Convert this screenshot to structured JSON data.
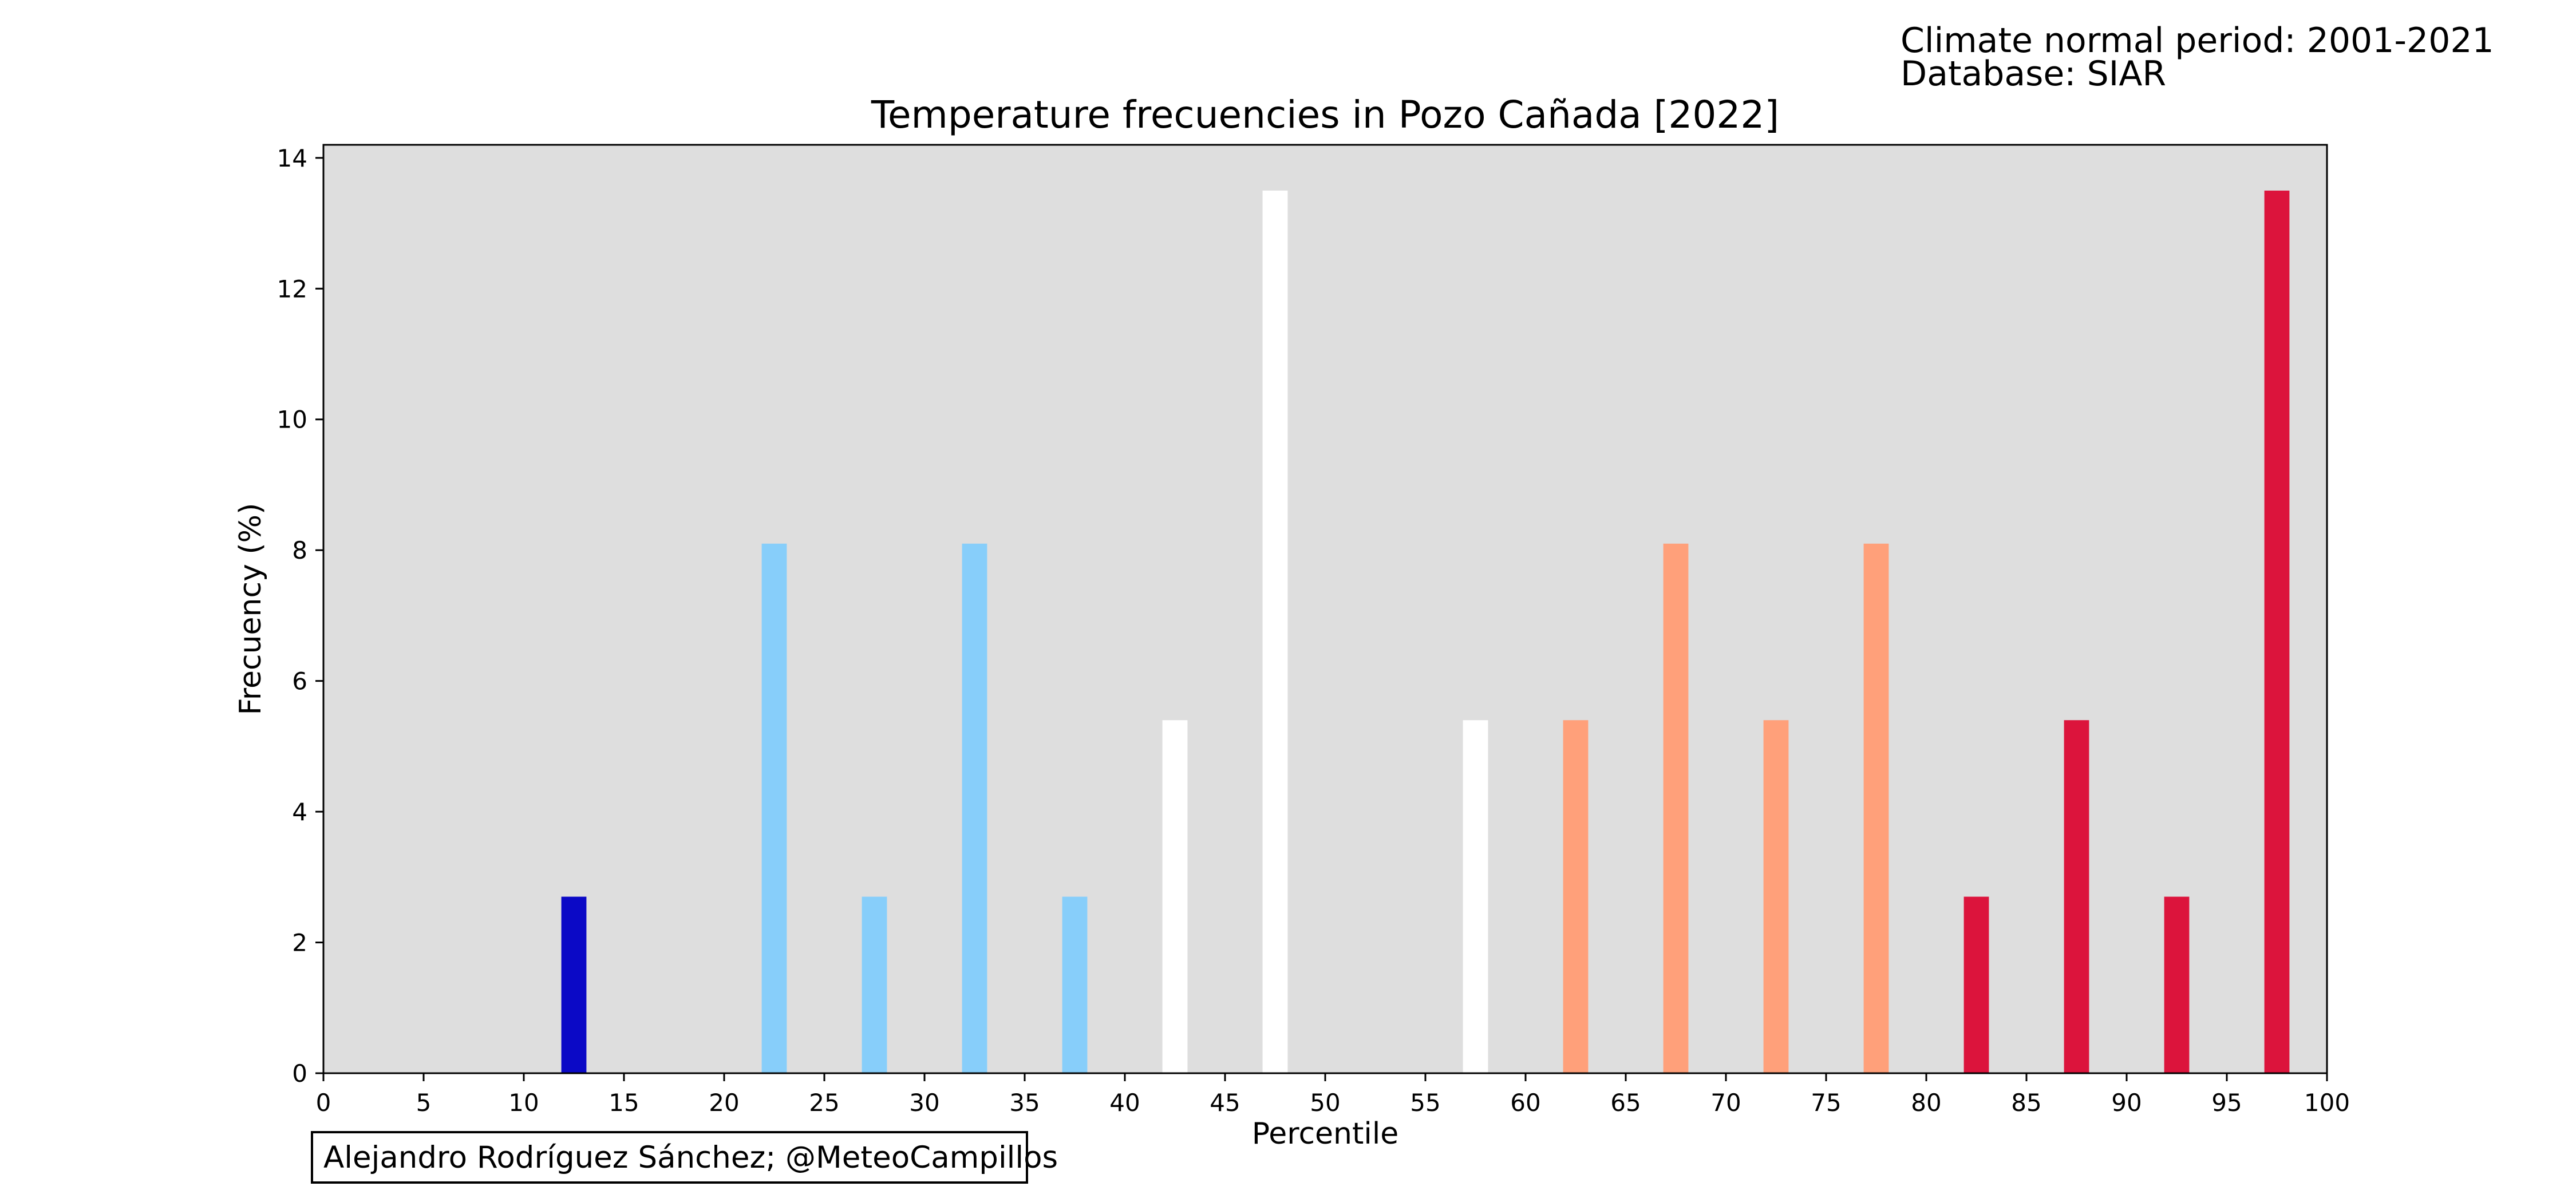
{
  "header": {
    "climate_period": "Climate normal period: 2001-2021",
    "database": "Database: SIAR"
  },
  "credit": "Alejandro Rodríguez Sánchez; @MeteoCampillos",
  "colors": {
    "background": "#dedede",
    "extreme_cold": "#0b09c6",
    "cold": "#87cefa",
    "normal": "#ffffff",
    "warm": "#ffa07a",
    "extreme_warm": "#dc143c"
  },
  "chart_data": {
    "type": "bar",
    "title": "Temperature frecuencies in Pozo Cañada [2022]",
    "xlabel": "Percentile",
    "ylabel": "Frecuency (%)",
    "xlim": [
      0,
      100
    ],
    "ylim": [
      0,
      14.2
    ],
    "x_ticks": [
      0,
      5,
      10,
      15,
      20,
      25,
      30,
      35,
      40,
      45,
      50,
      55,
      60,
      65,
      70,
      75,
      80,
      85,
      90,
      95,
      100
    ],
    "y_ticks": [
      0,
      2,
      4,
      6,
      8,
      10,
      12,
      14
    ],
    "bar_width": 1.25,
    "grid": false,
    "bars": [
      {
        "x": 12.5,
        "value": 2.7,
        "color": "#0b09c6"
      },
      {
        "x": 22.5,
        "value": 8.1,
        "color": "#87cefa"
      },
      {
        "x": 27.5,
        "value": 2.7,
        "color": "#87cefa"
      },
      {
        "x": 32.5,
        "value": 8.1,
        "color": "#87cefa"
      },
      {
        "x": 37.5,
        "value": 2.7,
        "color": "#87cefa"
      },
      {
        "x": 42.5,
        "value": 5.4,
        "color": "#ffffff"
      },
      {
        "x": 47.5,
        "value": 13.5,
        "color": "#ffffff"
      },
      {
        "x": 57.5,
        "value": 5.4,
        "color": "#ffffff"
      },
      {
        "x": 62.5,
        "value": 5.4,
        "color": "#ffa07a"
      },
      {
        "x": 67.5,
        "value": 8.1,
        "color": "#ffa07a"
      },
      {
        "x": 72.5,
        "value": 5.4,
        "color": "#ffa07a"
      },
      {
        "x": 77.5,
        "value": 8.1,
        "color": "#ffa07a"
      },
      {
        "x": 82.5,
        "value": 2.7,
        "color": "#dc143c"
      },
      {
        "x": 87.5,
        "value": 5.4,
        "color": "#dc143c"
      },
      {
        "x": 92.5,
        "value": 2.7,
        "color": "#dc143c"
      },
      {
        "x": 97.5,
        "value": 13.5,
        "color": "#dc143c"
      }
    ]
  }
}
